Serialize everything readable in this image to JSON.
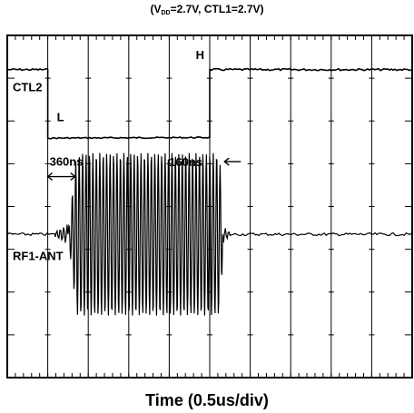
{
  "chart_data": {
    "type": "line",
    "title": "",
    "subtitle": {
      "open": "(V",
      "sub": "DD",
      "rest": "=2.7V, CTL1=2.7V)"
    },
    "xlabel": "Time  (0.5us/div)",
    "ylabel": "",
    "grid": true,
    "x_divisions": 10,
    "y_divisions": 8,
    "time_per_div_us": 0.5,
    "xlim_us": [
      0,
      5.0
    ],
    "series": [
      {
        "name": "CTL2",
        "kind": "digital",
        "levels": [
          {
            "label": "H",
            "from_us": 0.0,
            "to_us": 0.5
          },
          {
            "label": "L",
            "from_us": 0.5,
            "to_us": 2.5
          },
          {
            "label": "H",
            "from_us": 2.5,
            "to_us": 5.0
          }
        ],
        "level_labels": [
          "L",
          "H"
        ]
      },
      {
        "name": "RF1-ANT",
        "kind": "rf-burst",
        "burst_start_us": 0.75,
        "burst_end_us": 2.66,
        "cycles": 45,
        "amplitude_div": 1.9
      }
    ],
    "annotations": [
      {
        "label": "360ns",
        "from_us": 0.5,
        "to_us": 0.86,
        "style": "span-arrows"
      },
      {
        "label": "160ns",
        "from_us": 2.5,
        "to_us": 2.66,
        "style": "inward-arrows"
      }
    ]
  }
}
